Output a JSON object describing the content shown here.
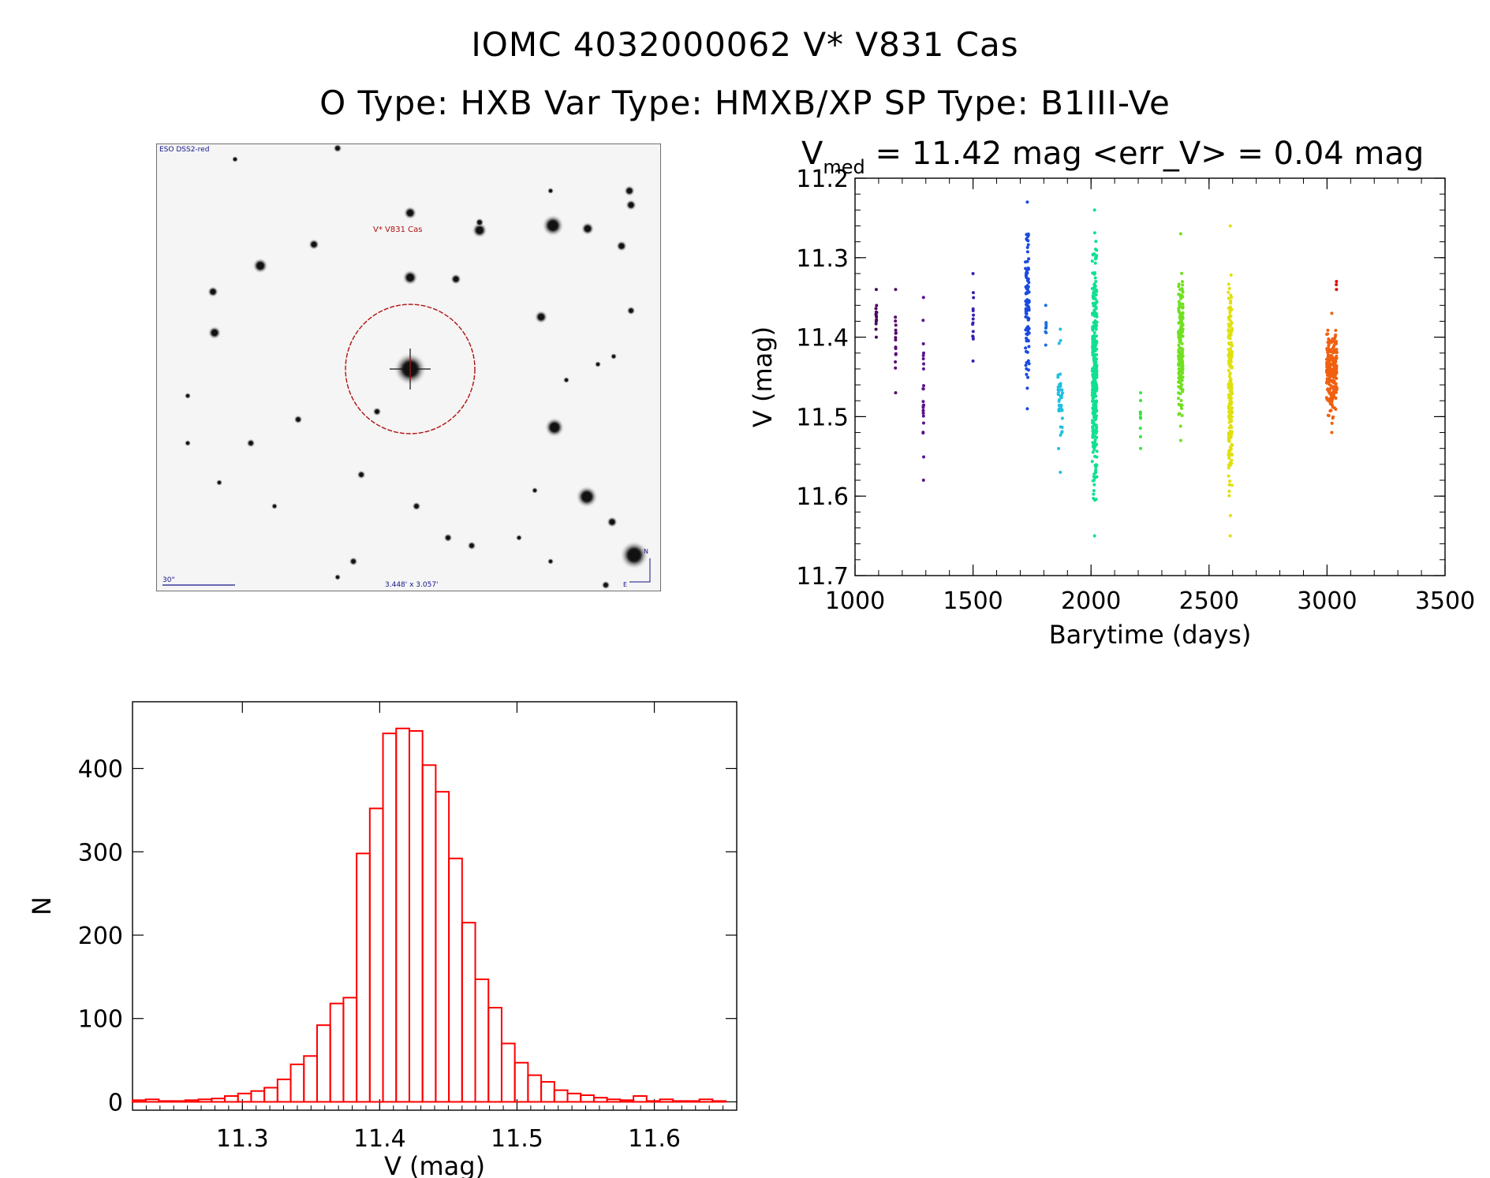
{
  "header": {
    "line1": "IOMC 4032000062   V* V831 Cas",
    "line2": "O Type: HXB  Var Type: HMXB/XP  SP Type: B1III-Ve"
  },
  "finder_chart": {
    "survey_label": "ESO DSS2-red",
    "object_label": "V* V831 Cas",
    "scale_label": "30\"",
    "fov_label": "3.448' x 3.057'",
    "north_label": "N",
    "east_label": "E",
    "circle_color": "#b01010"
  },
  "chart_data": [
    {
      "type": "scatter",
      "title_prefix": "V",
      "title_subscript": "med",
      "title_rest": " = 11.42 mag <err_V> = 0.04 mag",
      "xlabel": "Barytime (days)",
      "ylabel": "V (mag)",
      "xlim": [
        1000,
        3500
      ],
      "ylim": [
        11.7,
        11.2
      ],
      "yaxis_inverted": true,
      "xticks": [
        "1000",
        "1500",
        "2000",
        "2500",
        "3000",
        "3500"
      ],
      "yticks": [
        "11.2",
        "11.3",
        "11.4",
        "11.5",
        "11.6",
        "11.7"
      ],
      "clusters": [
        {
          "t": 1090,
          "spread": 2,
          "vmin": 11.34,
          "vmax": 11.4,
          "n": 12,
          "color": "#4a0a5a"
        },
        {
          "t": 1172,
          "spread": 2,
          "vmin": 11.34,
          "vmax": 11.47,
          "n": 14,
          "color": "#5a0c70"
        },
        {
          "t": 1290,
          "spread": 2,
          "vmin": 11.35,
          "vmax": 11.58,
          "n": 22,
          "color": "#5a1490"
        },
        {
          "t": 1500,
          "spread": 2,
          "vmin": 11.32,
          "vmax": 11.43,
          "n": 12,
          "color": "#3a20b0"
        },
        {
          "t": 1730,
          "spread": 8,
          "vmin": 11.23,
          "vmax": 11.49,
          "n": 90,
          "color": "#1a4ae0"
        },
        {
          "t": 1808,
          "spread": 2,
          "vmin": 11.36,
          "vmax": 11.41,
          "n": 6,
          "color": "#1a70e0"
        },
        {
          "t": 1870,
          "spread": 10,
          "vmin": 11.39,
          "vmax": 11.57,
          "n": 40,
          "color": "#20c0e0"
        },
        {
          "t": 2015,
          "spread": 10,
          "vmin": 11.24,
          "vmax": 11.65,
          "n": 320,
          "color": "#10e090"
        },
        {
          "t": 2210,
          "spread": 2,
          "vmin": 11.47,
          "vmax": 11.54,
          "n": 8,
          "color": "#40e040"
        },
        {
          "t": 2380,
          "spread": 10,
          "vmin": 11.27,
          "vmax": 11.53,
          "n": 160,
          "color": "#70e020"
        },
        {
          "t": 2590,
          "spread": 8,
          "vmin": 11.26,
          "vmax": 11.65,
          "n": 220,
          "color": "#e0e010"
        },
        {
          "t": 3020,
          "spread": 22,
          "vmin": 11.37,
          "vmax": 11.52,
          "n": 240,
          "color": "#f06010"
        },
        {
          "t": 3040,
          "spread": 6,
          "vmin": 11.33,
          "vmax": 11.34,
          "n": 1,
          "color": "#e01010"
        }
      ]
    },
    {
      "type": "bar",
      "xlabel": "V (mag)",
      "ylabel": "N",
      "xlim": [
        11.22,
        11.66
      ],
      "ylim": [
        -10,
        480
      ],
      "xticks": [
        "11.3",
        "11.4",
        "11.5",
        "11.6"
      ],
      "yticks": [
        "0",
        "100",
        "200",
        "300",
        "400"
      ],
      "bin_start": 11.22,
      "bin_width": 0.0096,
      "values": [
        2,
        3,
        1,
        1,
        2,
        3,
        4,
        7,
        10,
        13,
        17,
        27,
        45,
        55,
        92,
        118,
        125,
        298,
        352,
        442,
        448,
        445,
        404,
        372,
        292,
        215,
        147,
        113,
        70,
        47,
        32,
        24,
        14,
        10,
        8,
        5,
        3,
        2,
        7,
        1,
        3,
        1,
        1,
        3,
        1
      ],
      "bar_color": "#ff0000"
    }
  ]
}
